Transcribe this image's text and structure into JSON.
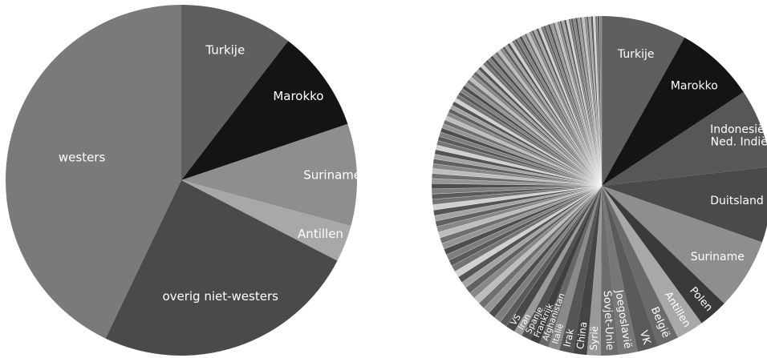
{
  "chart_data": [
    {
      "type": "pie",
      "categories": [
        "Turkije",
        "Marokko",
        "Suriname",
        "Antillen",
        "overig niet-westers",
        "westers"
      ],
      "values": [
        10.4,
        9.4,
        9.4,
        3.4,
        24.5,
        42.9
      ],
      "colors": [
        "#5f5f5f",
        "#141414",
        "#8e8e8e",
        "#a8a8a8",
        "#4a4a4a",
        "#7a7a7a"
      ]
    },
    {
      "type": "pie",
      "categories": [
        "Turkije",
        "Marokko",
        "Indonesië/ Ned. Indië",
        "Duitsland",
        "Suriname",
        "Polen",
        "Antillen",
        "België",
        "VK",
        "Joegoslavië",
        "Sovjet-Unie",
        "Syrië",
        "China",
        "Irak",
        "Italië",
        "Afghanistan",
        "Frankrijk",
        "Spanje",
        "Iran",
        "VS"
      ],
      "values": [
        8.1,
        7.6,
        7.5,
        7.2,
        6.8,
        2.8,
        2.6,
        2.0,
        2.0,
        1.8,
        1.7,
        1.3,
        1.3,
        1.3,
        1.1,
        0.9,
        0.9,
        0.9,
        0.8,
        0.9
      ],
      "colors": [
        "#5f5f5f",
        "#141414",
        "#575757",
        "#4a4a4a",
        "#8e8e8e",
        "#3a3a3a",
        "#a8a8a8",
        "#6a6a6a",
        "#5a5a5a",
        "#777777",
        "#6c6c6c",
        "#999999",
        "#444444",
        "#555555",
        "#8a8a8a",
        "#666666",
        "#3f3f3f",
        "#505050",
        "#9a9a9a",
        "#484848"
      ],
      "other_slice_count": 110,
      "other_total": 40.5
    }
  ]
}
